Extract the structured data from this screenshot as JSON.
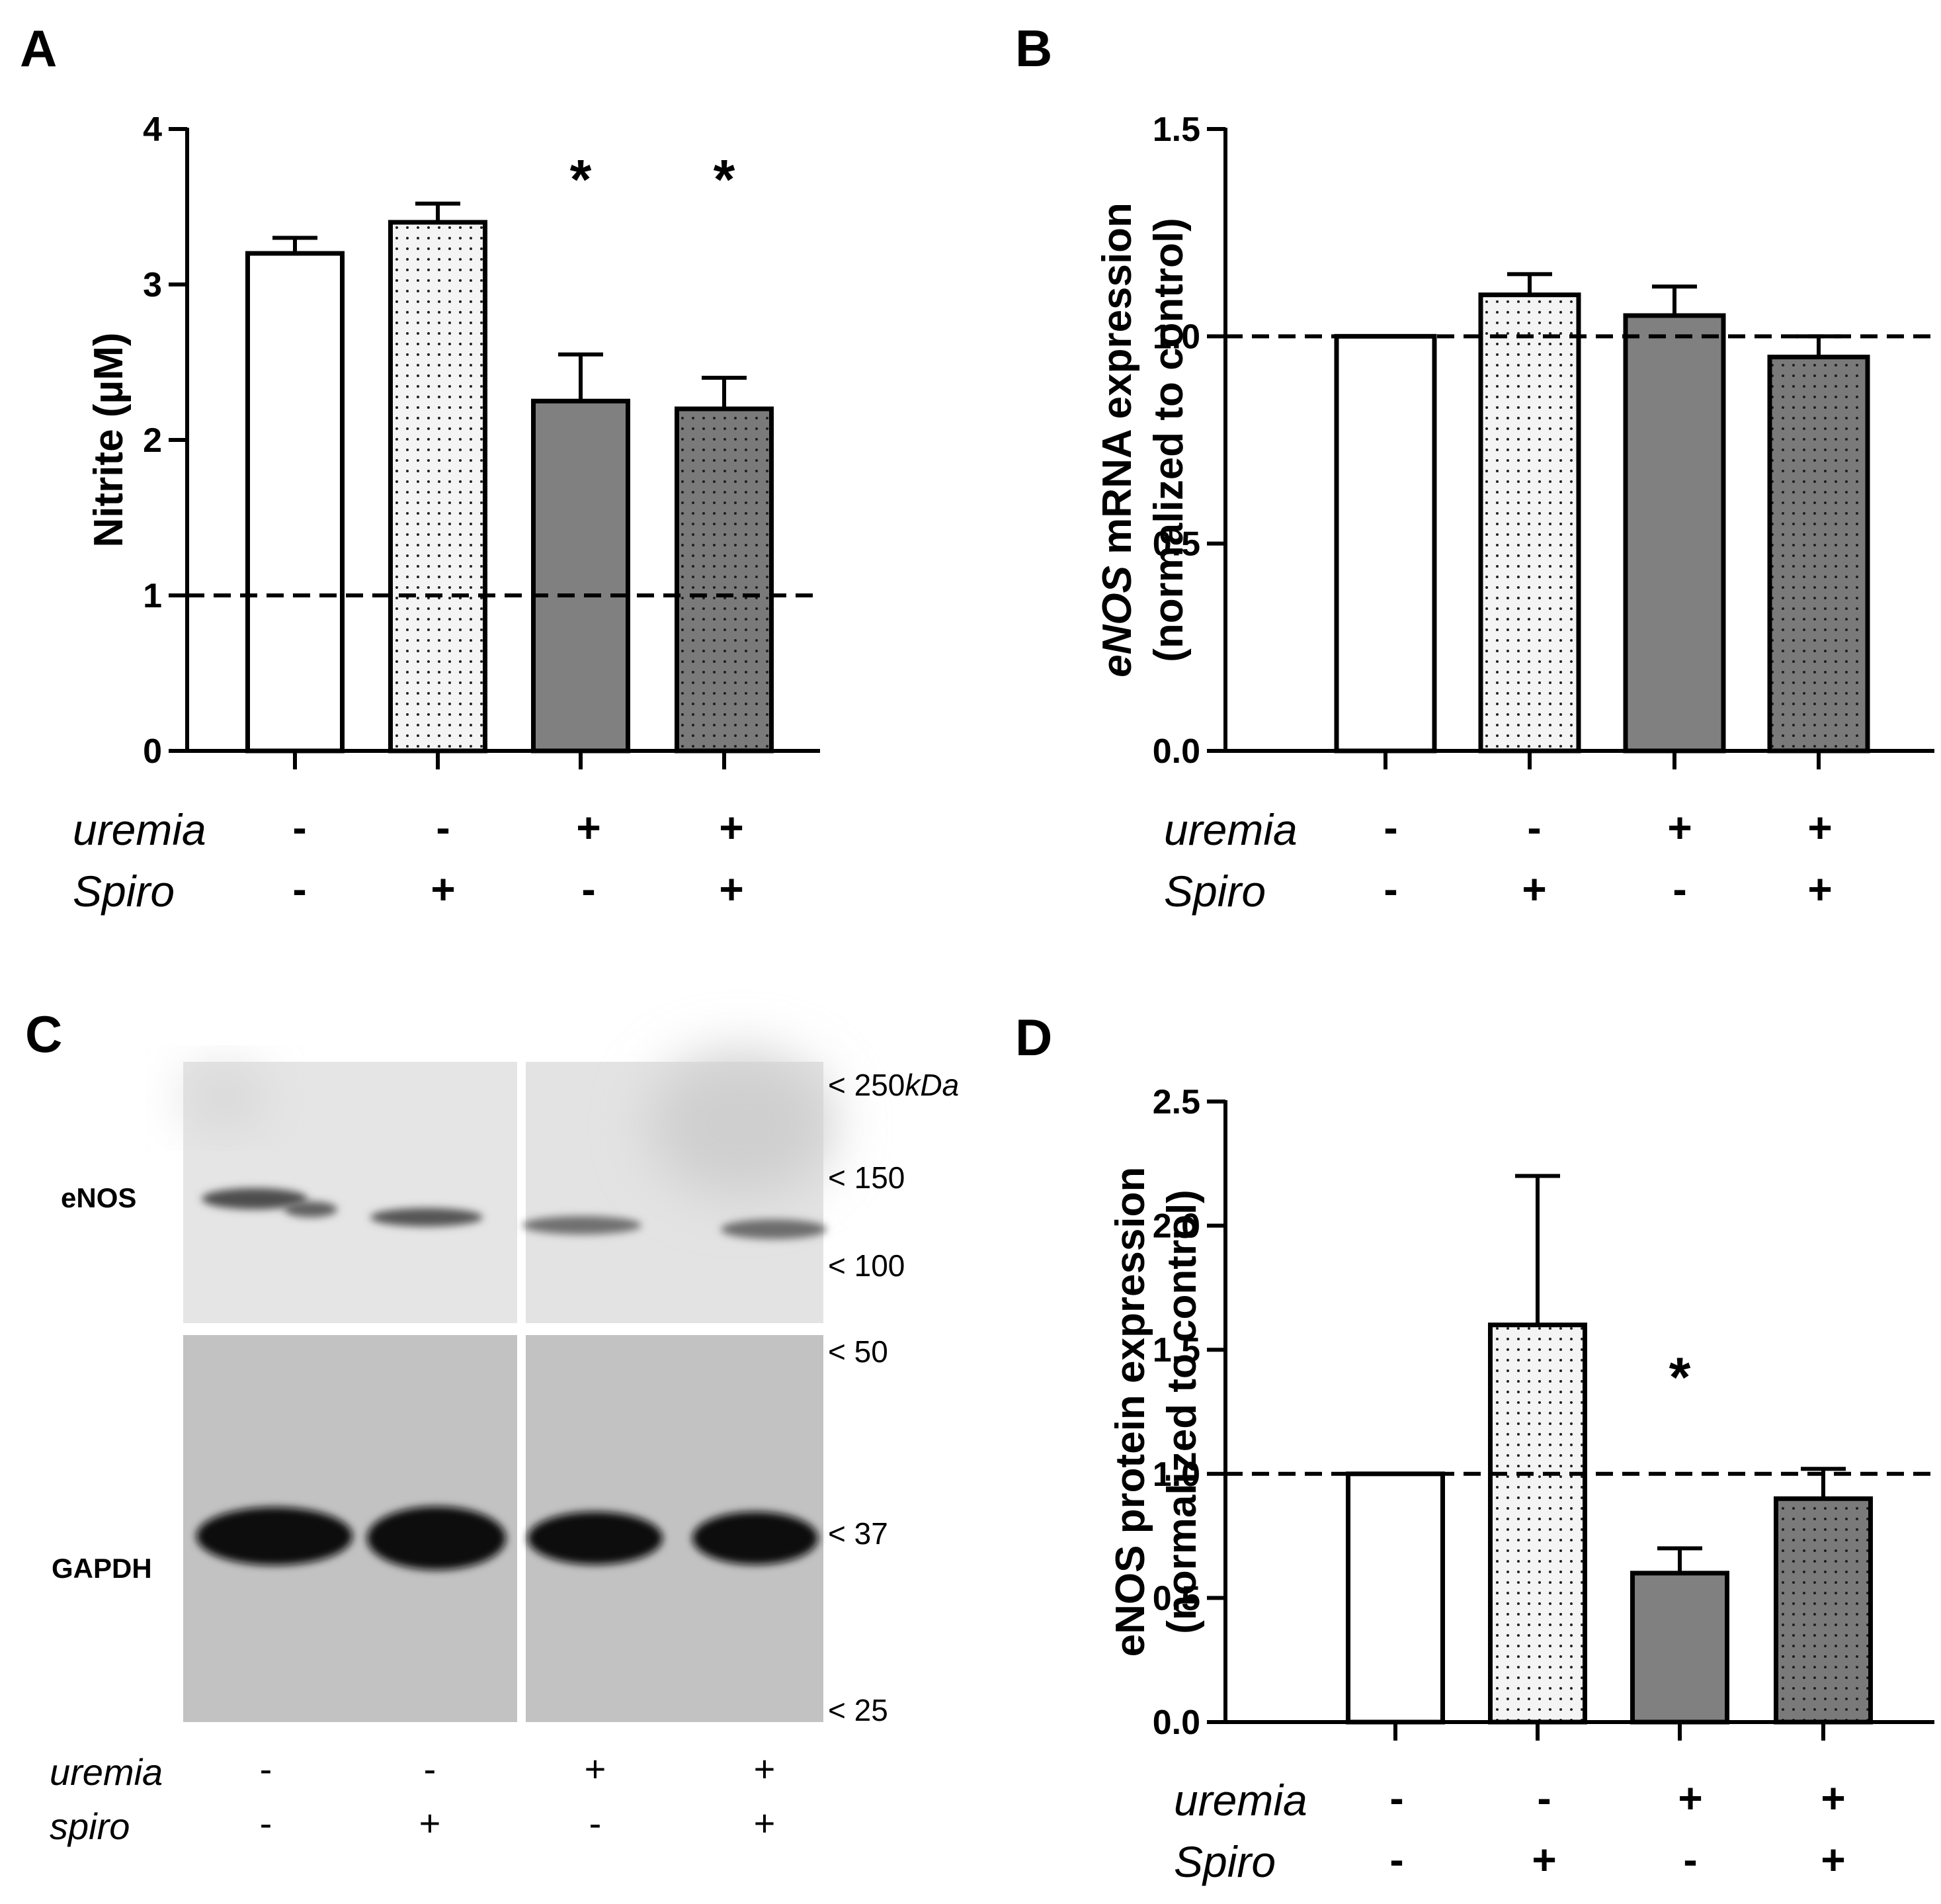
{
  "colors": {
    "control": "#ffffff",
    "spiro": "#f4f4f4",
    "uremia": "#808080",
    "uremia_spiro": "#7a7a7a",
    "stroke": "#000000",
    "dots_light": "#222222",
    "dots_dark": "#1e1e1e"
  },
  "conditions": {
    "uremia_label": "uremia",
    "spiro_label": "Spiro",
    "spiro_label_blot": "spiro",
    "uremia_signs": [
      "-",
      "-",
      "+",
      "+"
    ],
    "spiro_signs": [
      "-",
      "+",
      "-",
      "+"
    ]
  },
  "chart_data": [
    {
      "panel": "A",
      "type": "bar",
      "categories": [
        "uremia - / Spiro -",
        "uremia - / Spiro +",
        "uremia + / Spiro -",
        "uremia + / Spiro +"
      ],
      "values": [
        3.2,
        3.4,
        2.25,
        2.2
      ],
      "errors": [
        0.1,
        0.12,
        0.3,
        0.2
      ],
      "significance": [
        "",
        "",
        "*",
        "*"
      ],
      "ylabel": "Nitrite (µM)",
      "ylim": [
        0,
        4
      ],
      "yticks": [
        0,
        1,
        2,
        3,
        4
      ],
      "ytick_labels": [
        "0",
        "1",
        "2",
        "3",
        "4"
      ],
      "reference_line": 1.0,
      "grid": false
    },
    {
      "panel": "B",
      "type": "bar",
      "categories": [
        "uremia - / Spiro -",
        "uremia - / Spiro +",
        "uremia + / Spiro -",
        "uremia + / Spiro +"
      ],
      "values": [
        1.0,
        1.1,
        1.05,
        0.95
      ],
      "errors": [
        0,
        0.05,
        0.07,
        0.05
      ],
      "significance": [
        "",
        "",
        "",
        ""
      ],
      "ylabel_italic": "eNOS",
      "ylabel_rest": " mRNA expression",
      "ylabel_line2": "(normalized to control)",
      "ylim": [
        0,
        1.5
      ],
      "yticks": [
        0,
        0.5,
        1.0,
        1.5
      ],
      "ytick_labels": [
        "0.0",
        "0.5",
        "1.0",
        "1.5"
      ],
      "reference_line": 1.0,
      "grid": false
    },
    {
      "panel": "D",
      "type": "bar",
      "categories": [
        "uremia - / Spiro -",
        "uremia - / Spiro +",
        "uremia + / Spiro -",
        "uremia + / Spiro +"
      ],
      "values": [
        1.0,
        1.6,
        0.6,
        0.9
      ],
      "errors": [
        0,
        0.6,
        0.1,
        0.12
      ],
      "significance": [
        "",
        "",
        "*",
        ""
      ],
      "ylabel": "eNOS protein expression",
      "ylabel_line2": "(normalized to control)",
      "ylim": [
        0,
        2.5
      ],
      "yticks": [
        0,
        0.5,
        1.0,
        1.5,
        2.0,
        2.5
      ],
      "ytick_labels": [
        "0.0",
        "0.5",
        "1.0",
        "1.5",
        "2.0",
        "2.5"
      ],
      "reference_line": 1.0,
      "grid": false
    }
  ],
  "blot": {
    "panel": "C",
    "row_labels": {
      "enos": "eNOS",
      "gapdh": "GAPDH"
    },
    "markers": [
      {
        "label": "< 250",
        "unit": "kDa"
      },
      {
        "label": "< 150"
      },
      {
        "label": "< 100"
      },
      {
        "label": "< 50"
      },
      {
        "label": "< 37"
      },
      {
        "label": "< 25"
      }
    ]
  }
}
